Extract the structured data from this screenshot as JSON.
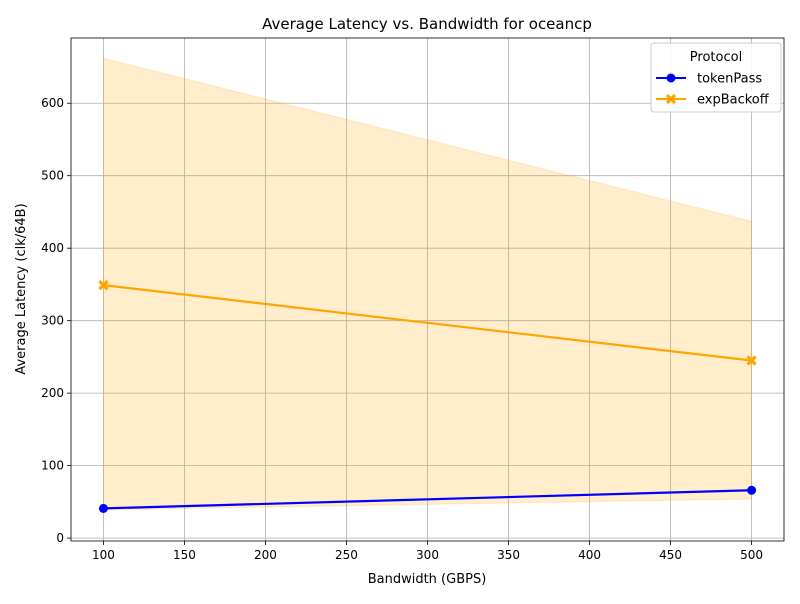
{
  "chart_data": {
    "type": "line",
    "title": "Average Latency vs. Bandwidth for oceancp",
    "xlabel": "Bandwidth (GBPS)",
    "ylabel": "Average Latency (clk/64B)",
    "xlim": [
      80,
      520
    ],
    "ylim": [
      -4,
      690
    ],
    "xticks": [
      100,
      150,
      200,
      250,
      300,
      350,
      400,
      450,
      500
    ],
    "yticks": [
      0,
      100,
      200,
      300,
      400,
      500,
      600
    ],
    "grid": true,
    "legend": {
      "title": "Protocol",
      "placement": "top-right"
    },
    "series": [
      {
        "name": "tokenPass",
        "color": "#0000ff",
        "marker": "circle",
        "x": [
          100,
          500
        ],
        "y": [
          41,
          66
        ]
      },
      {
        "name": "expBackoff",
        "color": "#ffa500",
        "marker": "x",
        "x": [
          100,
          500
        ],
        "y": [
          349,
          245
        ],
        "band": {
          "lower": [
            39,
            54
          ],
          "upper": [
            662,
            437
          ]
        }
      }
    ]
  }
}
